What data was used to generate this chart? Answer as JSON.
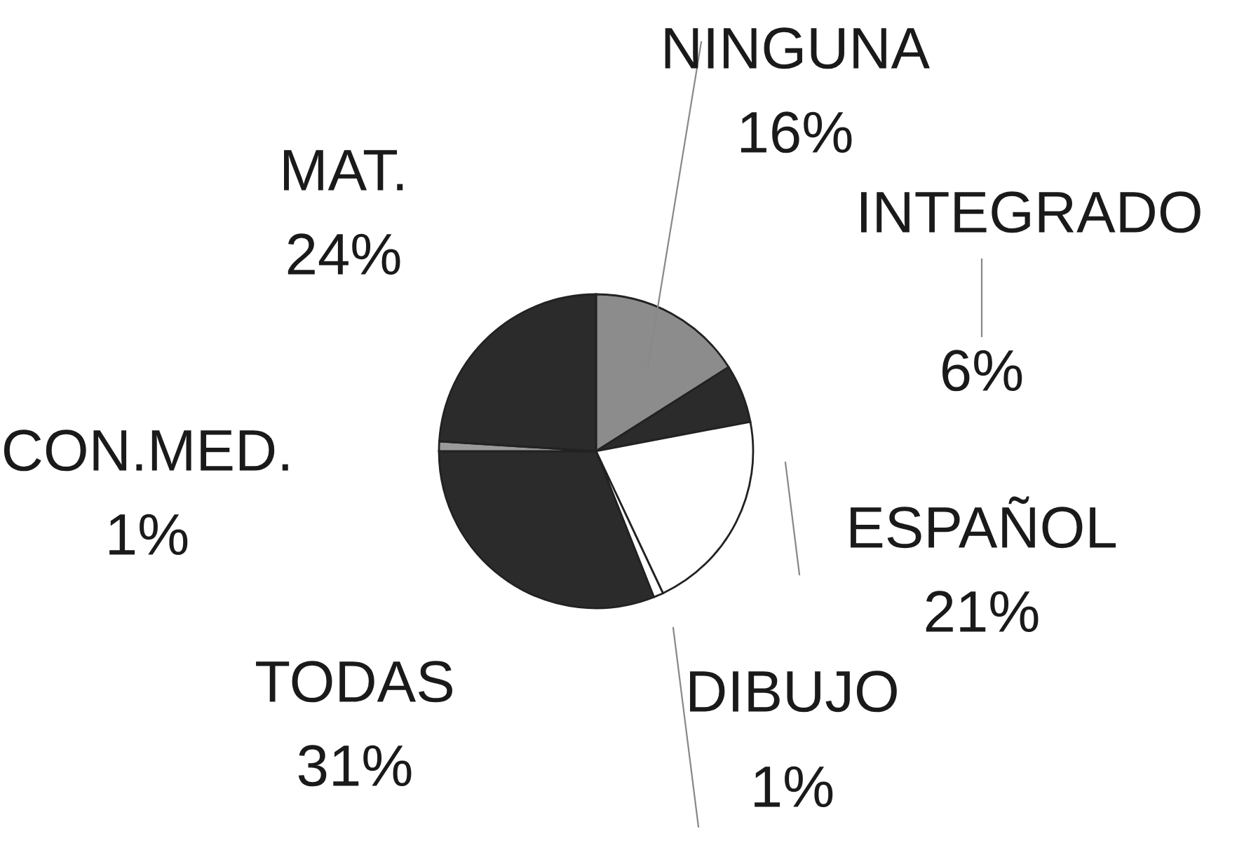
{
  "chart_data": {
    "type": "pie",
    "categories": [
      "NINGUNA",
      "INTEGRADO",
      "ESPAÑOL",
      "DIBUJO",
      "TODAS",
      "CON.MED.",
      "MAT."
    ],
    "values": [
      16,
      6,
      21,
      1,
      31,
      1,
      24
    ],
    "value_labels": [
      "16%",
      "6%",
      "21%",
      "1%",
      "31%",
      "1%",
      "24%"
    ],
    "colors": [
      "#8c8c8c",
      "#2b2b2b",
      "#ffffff",
      "#ffffff",
      "#2b2b2b",
      "#9a9a9a",
      "#2b2b2b"
    ]
  }
}
